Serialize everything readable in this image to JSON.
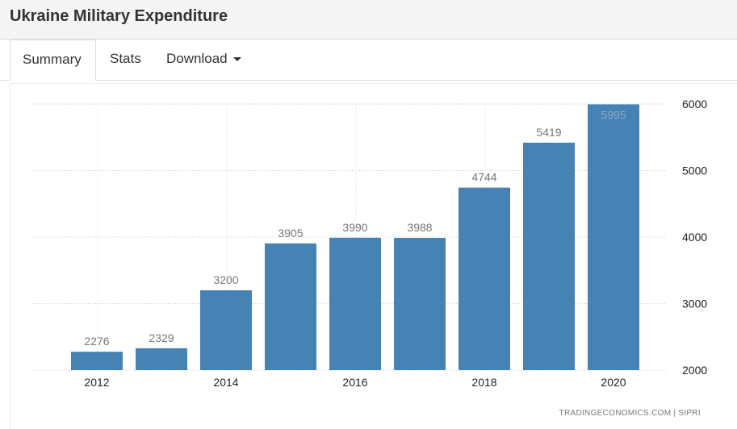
{
  "header": {
    "title": "Ukraine Military Expenditure"
  },
  "tabs": [
    {
      "label": "Summary"
    },
    {
      "label": "Stats"
    },
    {
      "label": "Download"
    }
  ],
  "chart_data": {
    "type": "bar",
    "title": "Ukraine Military Expenditure",
    "categories": [
      "2012",
      "2013",
      "2014",
      "2015",
      "2016",
      "2017",
      "2018",
      "2019",
      "2020"
    ],
    "values": [
      2276,
      2329,
      3200,
      3905,
      3990,
      3988,
      4744,
      5419,
      5995
    ],
    "x_tick_labels": [
      "2012",
      "2014",
      "2016",
      "2018",
      "2020"
    ],
    "y_ticks": [
      2000,
      3000,
      4000,
      5000,
      6000
    ],
    "ylim": [
      2000,
      6000
    ],
    "y_axis_side": "right",
    "grid": true,
    "bar_color": "#4682b4",
    "source": "TRADINGECONOMICS.COM | SIPRI"
  }
}
